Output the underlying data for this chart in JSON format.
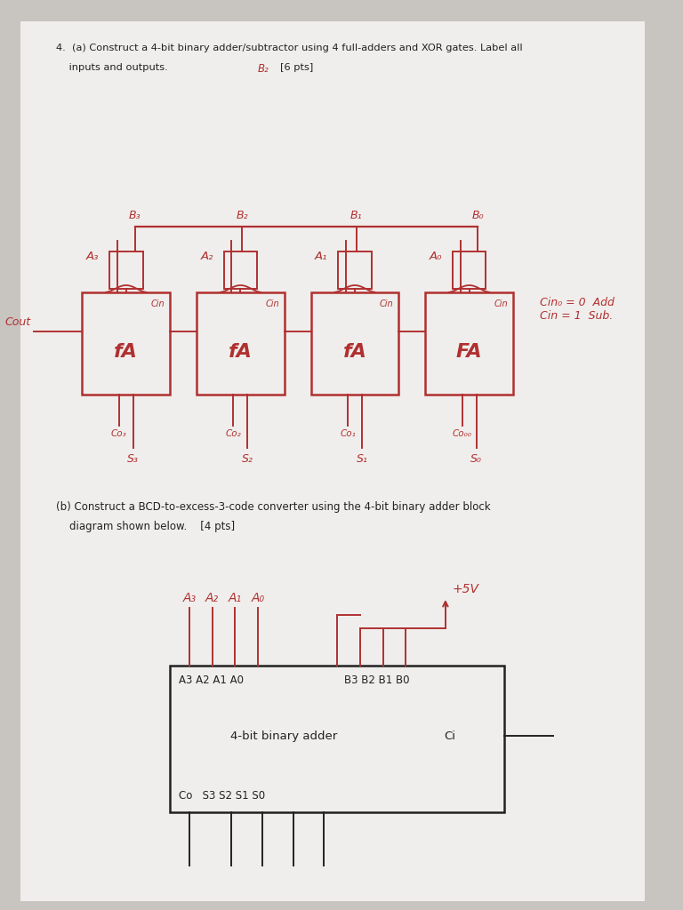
{
  "bg_color": "#c8c4c0",
  "paper_color": "#f0eeec",
  "red_color": "#b03030",
  "black_color": "#222222",
  "fa_labels": [
    "fA",
    "fA",
    "fA",
    "FA"
  ],
  "A_labels": [
    "A₃",
    "A₂",
    "A₁",
    "A₀"
  ],
  "B_labels": [
    "B₃",
    "B₂",
    "B₁",
    "B₀"
  ],
  "S_labels": [
    "S₃",
    "S₂",
    "S₁",
    "S₀"
  ],
  "Co_labels": [
    "Co₃",
    "Co₂",
    "Co₁",
    "Co₀₀"
  ],
  "cin_note": "Cin₀ = 0  Add\nCin = 1  Sub.",
  "cout_label": "Cout"
}
